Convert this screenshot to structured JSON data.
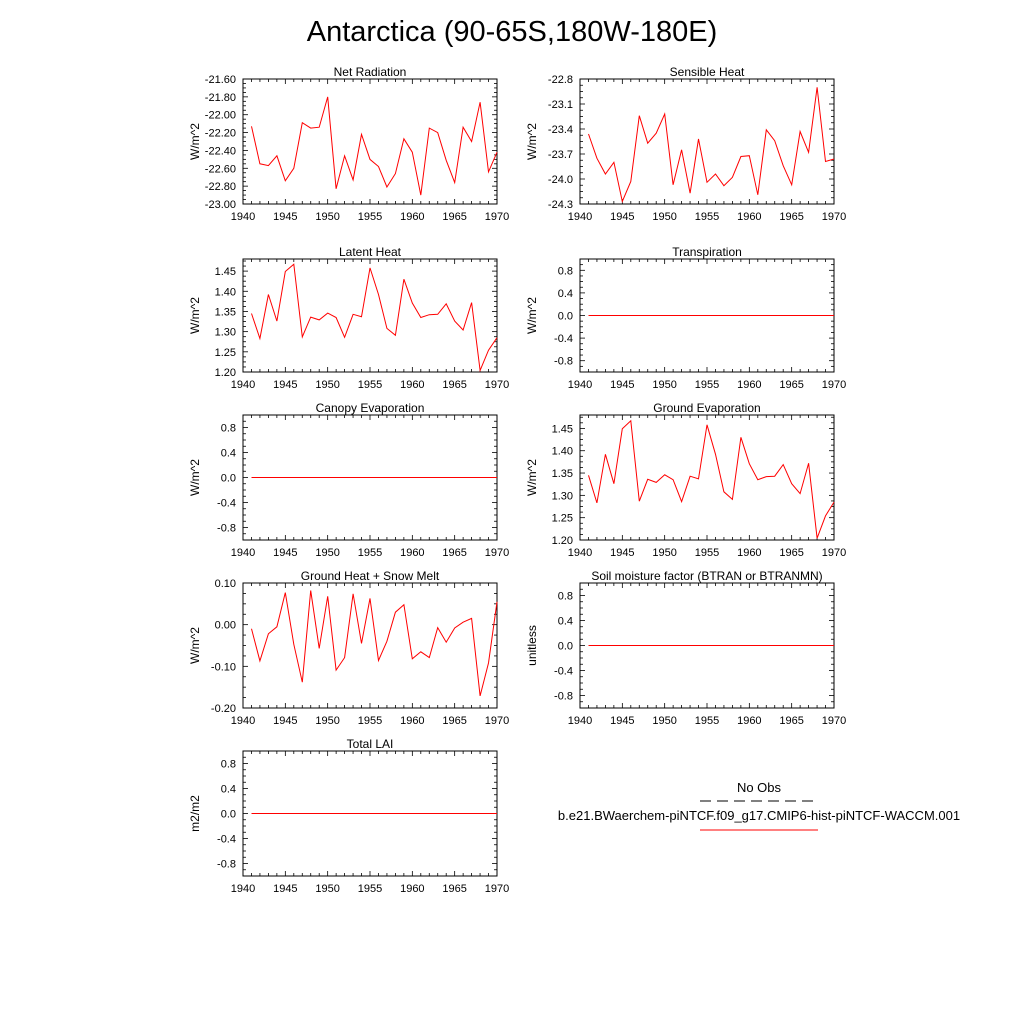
{
  "figure": {
    "title": "Antarctica (90-65S,180W-180E)"
  },
  "legend": {
    "obs_label": "No Obs",
    "model_label": "b.e21.BWaerchem-piNTCF.f09_g17.CMIP6-hist-piNTCF-WACCM.001",
    "obs_color": "#000000",
    "model_color": "#ff0000"
  },
  "chart_data": [
    {
      "type": "line",
      "title": "Net Radiation",
      "ylabel": "W/m^2",
      "xlim": [
        1940,
        1970
      ],
      "ylim": [
        -23.0,
        -21.6
      ],
      "xticks": [
        1940,
        1945,
        1950,
        1955,
        1960,
        1965,
        1970
      ],
      "xtick_labels": [
        "1940",
        "1945",
        "1950",
        "1955",
        "1960",
        "1965",
        "1970"
      ],
      "yticks": [
        -23.0,
        -22.8,
        -22.6,
        -22.4,
        -22.2,
        -22.0,
        -21.8,
        -21.6
      ],
      "ytick_labels": [
        "-23.00",
        "-22.80",
        "-22.60",
        "-22.40",
        "-22.20",
        "-22.00",
        "-21.80",
        "-21.60"
      ],
      "series": [
        {
          "color": "#ff0000",
          "x": [
            1941,
            1942,
            1943,
            1944,
            1945,
            1946,
            1947,
            1948,
            1949,
            1950,
            1951,
            1952,
            1953,
            1954,
            1955,
            1956,
            1957,
            1958,
            1959,
            1960,
            1961,
            1962,
            1963,
            1964,
            1965,
            1966,
            1967,
            1968,
            1969,
            1970
          ],
          "y": [
            -22.13,
            -22.55,
            -22.57,
            -22.46,
            -22.74,
            -22.6,
            -22.09,
            -22.15,
            -22.14,
            -21.8,
            -22.83,
            -22.46,
            -22.73,
            -22.22,
            -22.5,
            -22.58,
            -22.81,
            -22.66,
            -22.27,
            -22.42,
            -22.9,
            -22.15,
            -22.2,
            -22.51,
            -22.76,
            -22.14,
            -22.3,
            -21.86,
            -22.64,
            -22.42
          ]
        }
      ]
    },
    {
      "type": "line",
      "title": "Sensible Heat",
      "ylabel": "W/m^2",
      "xlim": [
        1940,
        1970
      ],
      "ylim": [
        -24.3,
        -22.8
      ],
      "xticks": [
        1940,
        1945,
        1950,
        1955,
        1960,
        1965,
        1970
      ],
      "xtick_labels": [
        "1940",
        "1945",
        "1950",
        "1955",
        "1960",
        "1965",
        "1970"
      ],
      "yticks": [
        -24.3,
        -24.0,
        -23.7,
        -23.4,
        -23.1,
        -22.8
      ],
      "ytick_labels": [
        "-24.3",
        "-24.0",
        "-23.7",
        "-23.4",
        "-23.1",
        "-22.8"
      ],
      "series": [
        {
          "color": "#ff0000",
          "x": [
            1941,
            1942,
            1943,
            1944,
            1945,
            1946,
            1947,
            1948,
            1949,
            1950,
            1951,
            1952,
            1953,
            1954,
            1955,
            1956,
            1957,
            1958,
            1959,
            1960,
            1961,
            1962,
            1963,
            1964,
            1965,
            1966,
            1967,
            1968,
            1969,
            1970
          ],
          "y": [
            -23.46,
            -23.75,
            -23.94,
            -23.8,
            -24.27,
            -24.03,
            -23.24,
            -23.57,
            -23.45,
            -23.22,
            -24.07,
            -23.65,
            -24.17,
            -23.52,
            -24.04,
            -23.94,
            -24.08,
            -23.98,
            -23.73,
            -23.72,
            -24.19,
            -23.41,
            -23.54,
            -23.84,
            -24.07,
            -23.43,
            -23.68,
            -22.9,
            -23.79,
            -23.76
          ]
        }
      ]
    },
    {
      "type": "line",
      "title": "Latent Heat",
      "ylabel": "W/m^2",
      "xlim": [
        1940,
        1970
      ],
      "ylim": [
        1.2,
        1.48
      ],
      "xticks": [
        1940,
        1945,
        1950,
        1955,
        1960,
        1965,
        1970
      ],
      "xtick_labels": [
        "1940",
        "1945",
        "1950",
        "1955",
        "1960",
        "1965",
        "1970"
      ],
      "yticks": [
        1.2,
        1.25,
        1.3,
        1.35,
        1.4,
        1.45
      ],
      "ytick_labels": [
        "1.20",
        "1.25",
        "1.30",
        "1.35",
        "1.40",
        "1.45"
      ],
      "series": [
        {
          "color": "#ff0000",
          "x": [
            1941,
            1942,
            1943,
            1944,
            1945,
            1946,
            1947,
            1948,
            1949,
            1950,
            1951,
            1952,
            1953,
            1954,
            1955,
            1956,
            1957,
            1958,
            1959,
            1960,
            1961,
            1962,
            1963,
            1964,
            1965,
            1966,
            1967,
            1968,
            1969,
            1970
          ],
          "y": [
            1.345,
            1.283,
            1.392,
            1.326,
            1.449,
            1.467,
            1.287,
            1.336,
            1.329,
            1.346,
            1.335,
            1.286,
            1.343,
            1.337,
            1.458,
            1.392,
            1.308,
            1.291,
            1.43,
            1.371,
            1.335,
            1.342,
            1.343,
            1.369,
            1.326,
            1.304,
            1.372,
            1.204,
            1.254,
            1.285
          ]
        }
      ]
    },
    {
      "type": "line",
      "title": "Transpiration",
      "ylabel": "W/m^2",
      "xlim": [
        1940,
        1970
      ],
      "ylim": [
        -1.0,
        1.0
      ],
      "xticks": [
        1940,
        1945,
        1950,
        1955,
        1960,
        1965,
        1970
      ],
      "xtick_labels": [
        "1940",
        "1945",
        "1950",
        "1955",
        "1960",
        "1965",
        "1970"
      ],
      "yticks": [
        -0.8,
        -0.4,
        0.0,
        0.4,
        0.8
      ],
      "ytick_labels": [
        "-0.8",
        "-0.4",
        "0.0",
        "0.4",
        "0.8"
      ],
      "series": [
        {
          "color": "#ff0000",
          "x": [
            1941,
            1970
          ],
          "y": [
            0.0,
            0.0
          ]
        }
      ]
    },
    {
      "type": "line",
      "title": "Canopy Evaporation",
      "ylabel": "W/m^2",
      "xlim": [
        1940,
        1970
      ],
      "ylim": [
        -1.0,
        1.0
      ],
      "xticks": [
        1940,
        1945,
        1950,
        1955,
        1960,
        1965,
        1970
      ],
      "xtick_labels": [
        "1940",
        "1945",
        "1950",
        "1955",
        "1960",
        "1965",
        "1970"
      ],
      "yticks": [
        -0.8,
        -0.4,
        0.0,
        0.4,
        0.8
      ],
      "ytick_labels": [
        "-0.8",
        "-0.4",
        "0.0",
        "0.4",
        "0.8"
      ],
      "series": [
        {
          "color": "#ff0000",
          "x": [
            1941,
            1970
          ],
          "y": [
            0.0,
            0.0
          ]
        }
      ]
    },
    {
      "type": "line",
      "title": "Ground Evaporation",
      "ylabel": "W/m^2",
      "xlim": [
        1940,
        1970
      ],
      "ylim": [
        1.2,
        1.48
      ],
      "xticks": [
        1940,
        1945,
        1950,
        1955,
        1960,
        1965,
        1970
      ],
      "xtick_labels": [
        "1940",
        "1945",
        "1950",
        "1955",
        "1960",
        "1965",
        "1970"
      ],
      "yticks": [
        1.2,
        1.25,
        1.3,
        1.35,
        1.4,
        1.45
      ],
      "ytick_labels": [
        "1.20",
        "1.25",
        "1.30",
        "1.35",
        "1.40",
        "1.45"
      ],
      "series": [
        {
          "color": "#ff0000",
          "x": [
            1941,
            1942,
            1943,
            1944,
            1945,
            1946,
            1947,
            1948,
            1949,
            1950,
            1951,
            1952,
            1953,
            1954,
            1955,
            1956,
            1957,
            1958,
            1959,
            1960,
            1961,
            1962,
            1963,
            1964,
            1965,
            1966,
            1967,
            1968,
            1969,
            1970
          ],
          "y": [
            1.345,
            1.283,
            1.392,
            1.326,
            1.449,
            1.467,
            1.287,
            1.336,
            1.329,
            1.346,
            1.335,
            1.286,
            1.343,
            1.337,
            1.458,
            1.392,
            1.308,
            1.291,
            1.43,
            1.371,
            1.335,
            1.342,
            1.343,
            1.369,
            1.326,
            1.304,
            1.372,
            1.204,
            1.254,
            1.285
          ]
        }
      ]
    },
    {
      "type": "line",
      "title": "Ground Heat + Snow Melt",
      "ylabel": "W/m^2",
      "xlim": [
        1940,
        1970
      ],
      "ylim": [
        -0.2,
        0.1
      ],
      "xticks": [
        1940,
        1945,
        1950,
        1955,
        1960,
        1965,
        1970
      ],
      "xtick_labels": [
        "1940",
        "1945",
        "1950",
        "1955",
        "1960",
        "1965",
        "1970"
      ],
      "yticks": [
        -0.2,
        -0.1,
        0.0,
        0.1
      ],
      "ytick_labels": [
        "-0.20",
        "-0.10",
        "0.00",
        "0.10"
      ],
      "series": [
        {
          "color": "#ff0000",
          "x": [
            1941,
            1942,
            1943,
            1944,
            1945,
            1946,
            1947,
            1948,
            1949,
            1950,
            1951,
            1952,
            1953,
            1954,
            1955,
            1956,
            1957,
            1958,
            1959,
            1960,
            1961,
            1962,
            1963,
            1964,
            1965,
            1966,
            1967,
            1968,
            1969,
            1970
          ],
          "y": [
            -0.01,
            -0.087,
            -0.022,
            -0.005,
            0.077,
            -0.047,
            -0.138,
            0.082,
            -0.057,
            0.068,
            -0.109,
            -0.079,
            0.074,
            -0.045,
            0.063,
            -0.086,
            -0.04,
            0.03,
            0.048,
            -0.082,
            -0.065,
            -0.079,
            -0.007,
            -0.042,
            -0.008,
            0.006,
            0.015,
            -0.171,
            -0.092,
            0.055
          ]
        }
      ]
    },
    {
      "type": "line",
      "title": "Soil moisture factor (BTRAN or BTRANMN)",
      "ylabel": "unitless",
      "xlim": [
        1940,
        1970
      ],
      "ylim": [
        -1.0,
        1.0
      ],
      "xticks": [
        1940,
        1945,
        1950,
        1955,
        1960,
        1965,
        1970
      ],
      "xtick_labels": [
        "1940",
        "1945",
        "1950",
        "1955",
        "1960",
        "1965",
        "1970"
      ],
      "yticks": [
        -0.8,
        -0.4,
        0.0,
        0.4,
        0.8
      ],
      "ytick_labels": [
        "-0.8",
        "-0.4",
        "0.0",
        "0.4",
        "0.8"
      ],
      "series": [
        {
          "color": "#ff0000",
          "x": [
            1941,
            1970
          ],
          "y": [
            0.0,
            0.0
          ]
        }
      ]
    },
    {
      "type": "line",
      "title": "Total LAI",
      "ylabel": "m2/m2",
      "xlim": [
        1940,
        1970
      ],
      "ylim": [
        -1.0,
        1.0
      ],
      "xticks": [
        1940,
        1945,
        1950,
        1955,
        1960,
        1965,
        1970
      ],
      "xtick_labels": [
        "1940",
        "1945",
        "1950",
        "1955",
        "1960",
        "1965",
        "1970"
      ],
      "yticks": [
        -0.8,
        -0.4,
        0.0,
        0.4,
        0.8
      ],
      "ytick_labels": [
        "-0.8",
        "-0.4",
        "0.0",
        "0.4",
        "0.8"
      ],
      "series": [
        {
          "color": "#ff0000",
          "x": [
            1941,
            1970
          ],
          "y": [
            0.0,
            0.0
          ]
        }
      ]
    }
  ]
}
